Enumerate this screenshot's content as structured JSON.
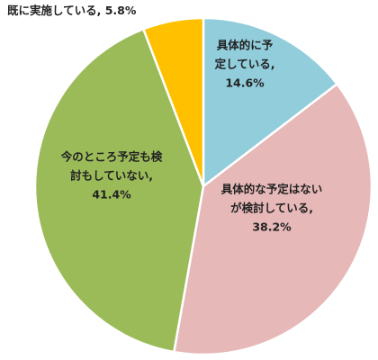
{
  "chart_data": {
    "type": "pie",
    "start": "12 o'clock",
    "direction": "clockwise",
    "slices": [
      {
        "label": [
          "具体的に予",
          "定している,"
        ],
        "value": 14.6,
        "display": "14.6%",
        "color": "#92CDDC",
        "label_position": "inside"
      },
      {
        "label": [
          "具体的な予定はない",
          "が検討している,"
        ],
        "value": 38.2,
        "display": "38.2%",
        "color": "#E6B8B7",
        "label_position": "inside"
      },
      {
        "label": [
          "今のところ予定も検",
          "討もしていない,"
        ],
        "value": 41.4,
        "display": "41.4%",
        "color": "#9BBB59",
        "label_position": "inside"
      },
      {
        "label": [
          "既に実施している,"
        ],
        "value": 5.8,
        "display": "5.8%",
        "color": "#FFC000",
        "label_position": "outside"
      }
    ]
  }
}
